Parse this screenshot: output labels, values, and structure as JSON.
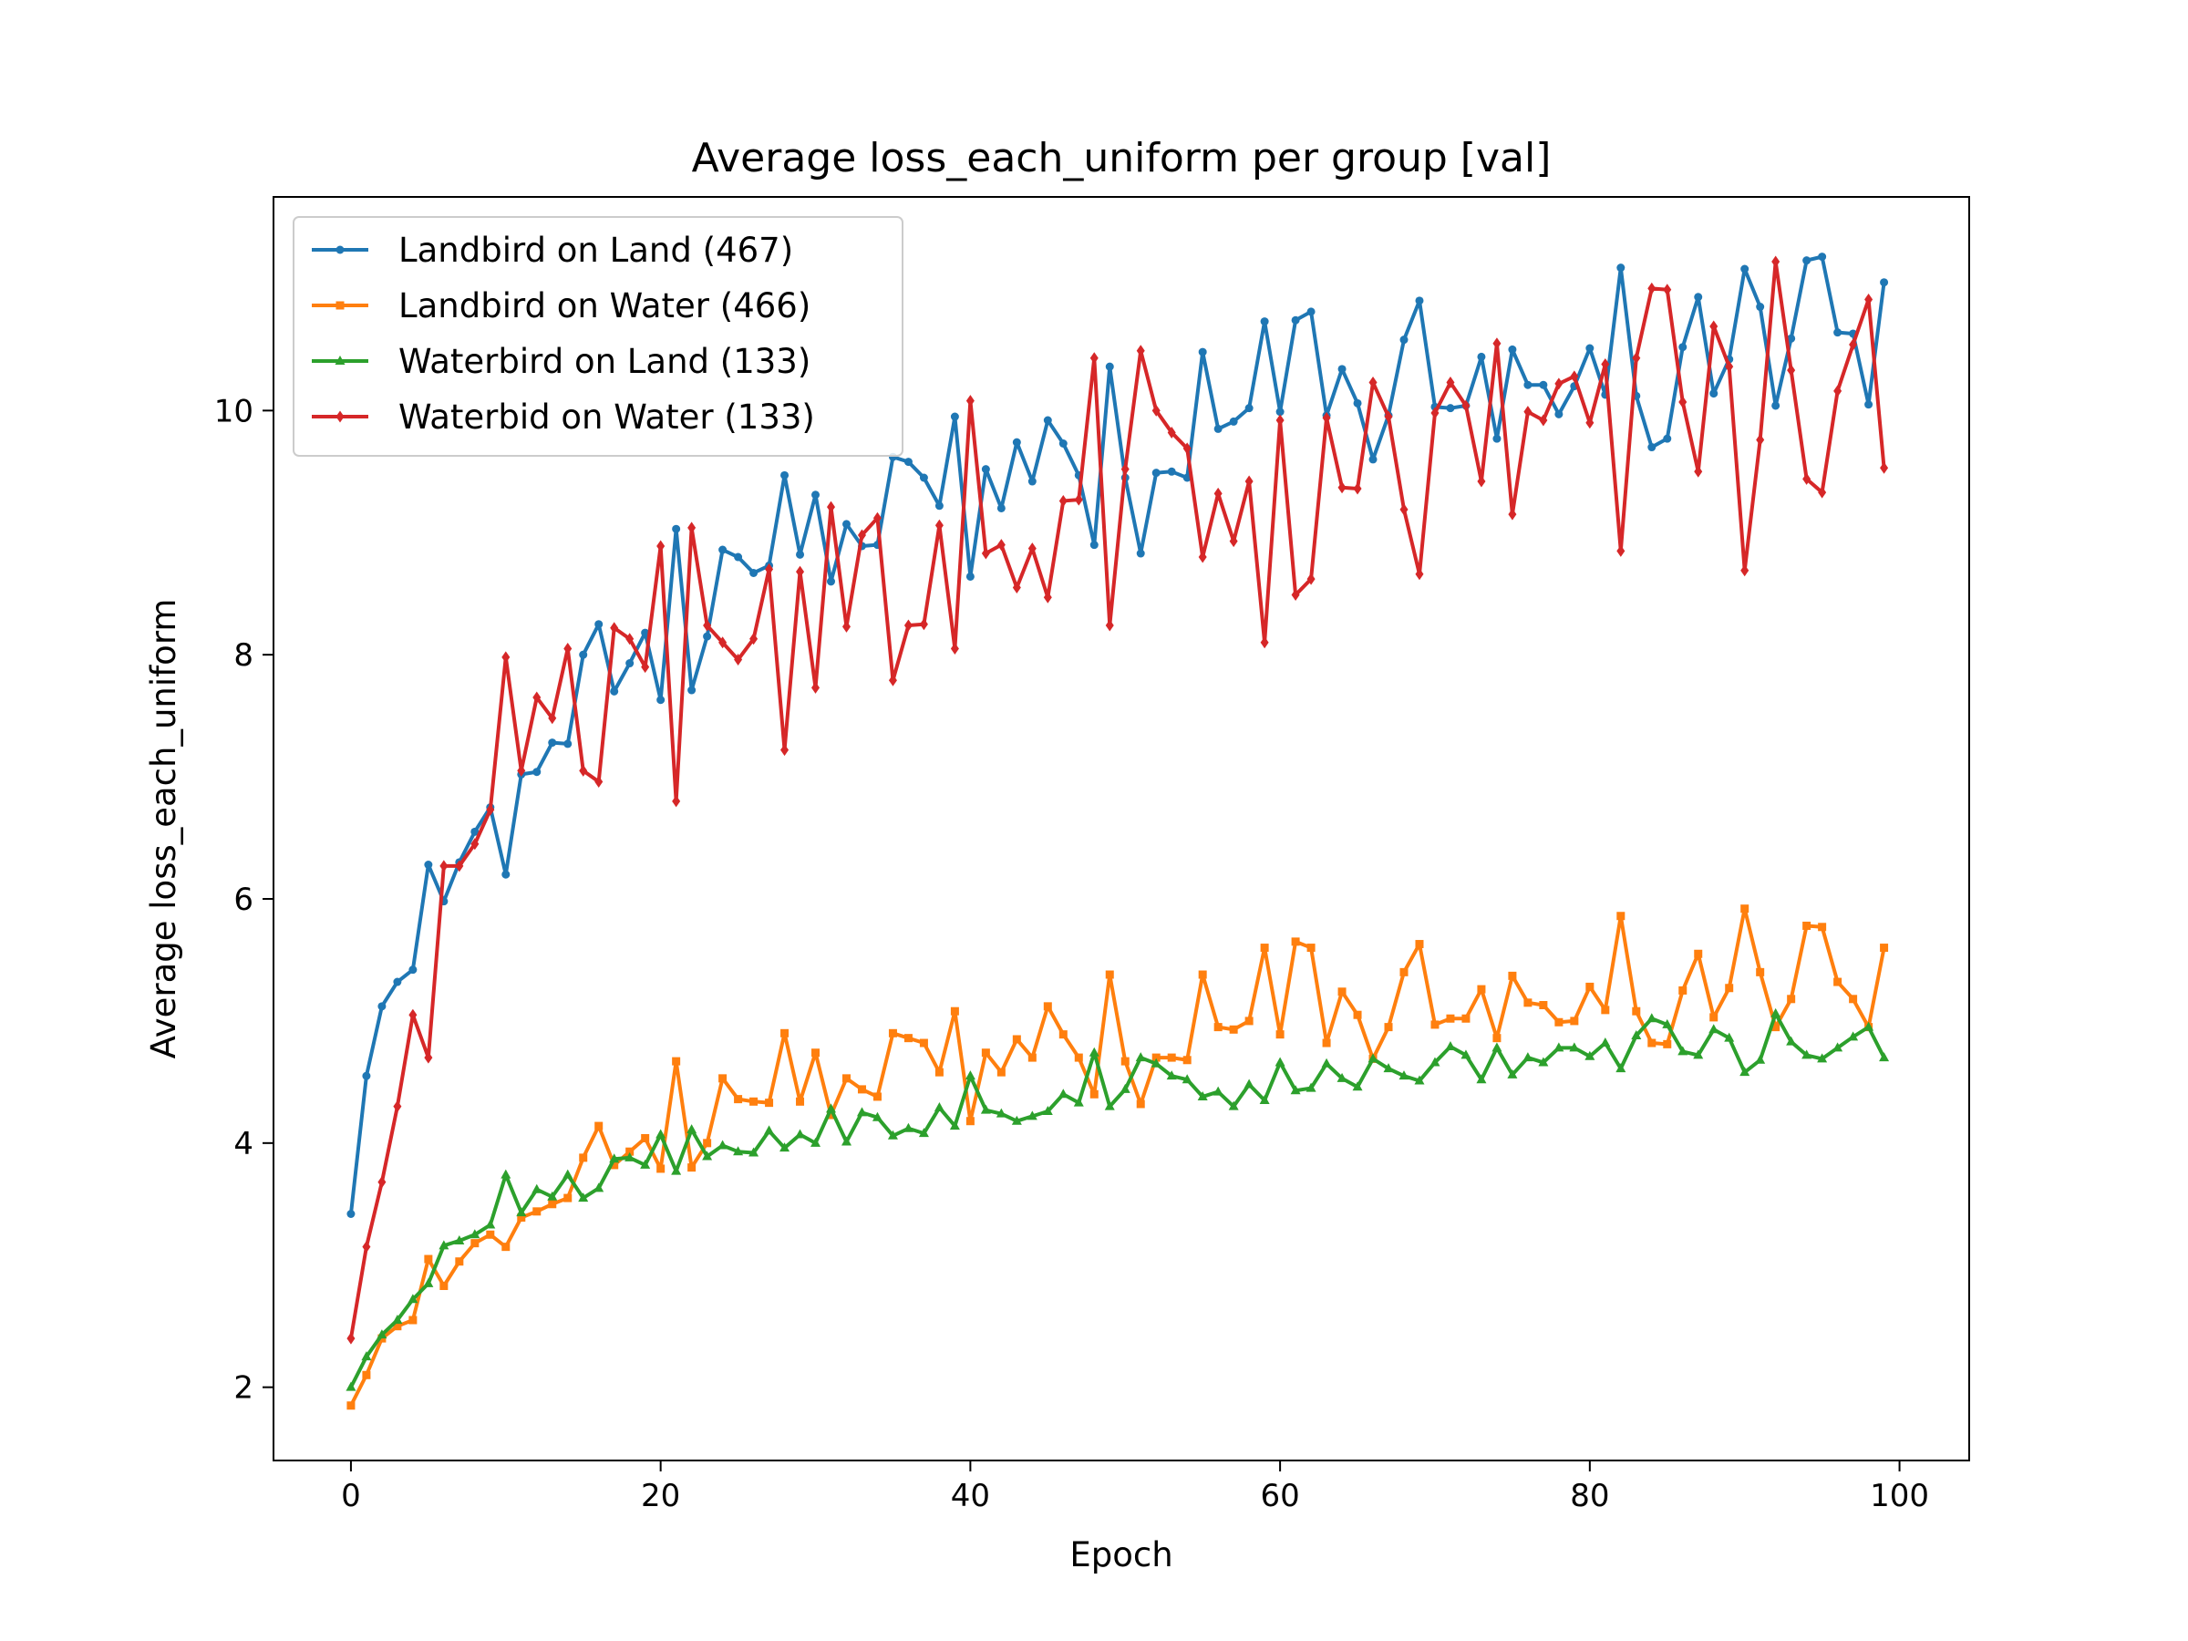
{
  "chart_data": {
    "type": "line",
    "title": "Average loss_each_uniform per group [val]",
    "xlabel": "Epoch",
    "ylabel": "Average loss_each_uniform",
    "xlim": [
      -5,
      104.5
    ],
    "ylim": [
      1.4,
      11.75
    ],
    "xticks": [
      0,
      20,
      40,
      60,
      80,
      100
    ],
    "yticks": [
      2,
      4,
      6,
      8,
      10
    ],
    "legend_position": "upper-left",
    "grid": false,
    "x": [
      0,
      1,
      2,
      3,
      4,
      5,
      6,
      7,
      8,
      9,
      10,
      11,
      12,
      13,
      14,
      15,
      16,
      17,
      18,
      19,
      20,
      21,
      22,
      23,
      24,
      25,
      26,
      27,
      28,
      29,
      30,
      31,
      32,
      33,
      34,
      35,
      36,
      37,
      38,
      39,
      40,
      41,
      42,
      43,
      44,
      45,
      46,
      47,
      48,
      49,
      50,
      51,
      52,
      53,
      54,
      55,
      56,
      57,
      58,
      59,
      60,
      61,
      62,
      63,
      64,
      65,
      66,
      67,
      68,
      69,
      70,
      71,
      72,
      73,
      74,
      75,
      76,
      77,
      78,
      79,
      80,
      81,
      82,
      83,
      84,
      85,
      86,
      87,
      88,
      89,
      90,
      91,
      92,
      93,
      94,
      95,
      96,
      97,
      98,
      99
    ],
    "series": [
      {
        "name": "Landbird on Land (467)",
        "color": "#1f77b4",
        "marker": "circle",
        "values": [
          3.42,
          4.55,
          5.12,
          5.32,
          5.42,
          6.28,
          5.98,
          6.3,
          6.55,
          6.75,
          6.2,
          7.02,
          7.04,
          7.28,
          7.27,
          8.0,
          8.25,
          7.7,
          7.93,
          8.18,
          7.63,
          9.03,
          7.71,
          8.15,
          8.86,
          8.8,
          8.67,
          8.73,
          9.47,
          8.82,
          9.31,
          8.6,
          9.07,
          8.89,
          8.9,
          9.62,
          9.58,
          9.45,
          9.22,
          9.95,
          8.64,
          9.52,
          9.2,
          9.74,
          9.42,
          9.92,
          9.73,
          9.47,
          8.9,
          10.36,
          9.45,
          8.83,
          9.49,
          9.5,
          9.45,
          10.48,
          9.85,
          9.91,
          10.02,
          10.73,
          9.99,
          10.74,
          10.81,
          9.96,
          10.34,
          10.06,
          9.6,
          9.96,
          10.58,
          10.9,
          10.03,
          10.02,
          10.04,
          10.44,
          9.77,
          10.5,
          10.21,
          10.21,
          9.97,
          10.2,
          10.51,
          10.13,
          11.17,
          10.12,
          9.7,
          9.77,
          10.52,
          10.93,
          10.14,
          10.42,
          11.16,
          10.85,
          10.04,
          10.59,
          11.23,
          11.26,
          10.64,
          10.63,
          10.05,
          11.05
        ]
      },
      {
        "name": "Landbird on Water (466)",
        "color": "#ff7f0e",
        "marker": "square",
        "values": [
          1.85,
          2.1,
          2.4,
          2.5,
          2.55,
          3.05,
          2.83,
          3.03,
          3.18,
          3.25,
          3.15,
          3.39,
          3.44,
          3.5,
          3.55,
          3.88,
          4.14,
          3.82,
          3.93,
          4.04,
          3.79,
          4.67,
          3.8,
          4.0,
          4.53,
          4.36,
          4.34,
          4.33,
          4.9,
          4.34,
          4.74,
          4.23,
          4.53,
          4.44,
          4.38,
          4.9,
          4.86,
          4.82,
          4.58,
          5.08,
          4.18,
          4.74,
          4.58,
          4.85,
          4.7,
          5.12,
          4.89,
          4.7,
          4.4,
          5.38,
          4.67,
          4.32,
          4.7,
          4.7,
          4.68,
          5.38,
          4.95,
          4.93,
          5.0,
          5.6,
          4.89,
          5.65,
          5.6,
          4.82,
          5.24,
          5.05,
          4.69,
          4.95,
          5.4,
          5.63,
          4.97,
          5.02,
          5.02,
          5.26,
          4.86,
          5.37,
          5.15,
          5.13,
          4.99,
          5.0,
          5.28,
          5.09,
          5.86,
          5.08,
          4.82,
          4.81,
          5.25,
          5.55,
          5.03,
          5.27,
          5.92,
          5.4,
          4.95,
          5.18,
          5.78,
          5.77,
          5.32,
          5.18,
          4.95,
          5.6
        ]
      },
      {
        "name": "Waterbird on Land (133)",
        "color": "#2ca02c",
        "marker": "triangle",
        "values": [
          2.0,
          2.25,
          2.43,
          2.55,
          2.72,
          2.85,
          3.16,
          3.2,
          3.25,
          3.33,
          3.74,
          3.43,
          3.62,
          3.56,
          3.74,
          3.55,
          3.63,
          3.87,
          3.88,
          3.82,
          4.07,
          3.77,
          4.11,
          3.89,
          3.98,
          3.93,
          3.92,
          4.1,
          3.96,
          4.07,
          4.0,
          4.28,
          4.01,
          4.25,
          4.21,
          4.06,
          4.12,
          4.08,
          4.29,
          4.14,
          4.55,
          4.27,
          4.24,
          4.18,
          4.22,
          4.26,
          4.4,
          4.33,
          4.74,
          4.3,
          4.44,
          4.7,
          4.65,
          4.55,
          4.52,
          4.38,
          4.42,
          4.3,
          4.48,
          4.35,
          4.66,
          4.43,
          4.45,
          4.65,
          4.53,
          4.46,
          4.69,
          4.61,
          4.55,
          4.51,
          4.66,
          4.79,
          4.72,
          4.52,
          4.78,
          4.56,
          4.7,
          4.66,
          4.78,
          4.78,
          4.71,
          4.82,
          4.61,
          4.88,
          5.02,
          4.97,
          4.75,
          4.72,
          4.93,
          4.86,
          4.58,
          4.68,
          5.06,
          4.83,
          4.72,
          4.69,
          4.78,
          4.87,
          4.95,
          4.7
        ]
      },
      {
        "name": "Waterbid on Water (133)",
        "color": "#d62728",
        "marker": "diamond",
        "values": [
          2.4,
          3.15,
          3.68,
          4.3,
          5.05,
          4.7,
          6.27,
          6.27,
          6.45,
          6.73,
          7.98,
          7.05,
          7.65,
          7.48,
          8.05,
          7.05,
          6.96,
          8.22,
          8.13,
          7.9,
          8.89,
          6.8,
          9.04,
          8.24,
          8.1,
          7.96,
          8.13,
          8.7,
          7.22,
          8.68,
          7.73,
          9.21,
          8.23,
          8.98,
          9.12,
          7.79,
          8.24,
          8.25,
          9.06,
          8.05,
          10.08,
          8.83,
          8.9,
          8.55,
          8.87,
          8.47,
          9.26,
          9.27,
          10.43,
          8.24,
          9.52,
          10.49,
          10.0,
          9.82,
          9.69,
          8.8,
          9.32,
          8.93,
          9.42,
          8.1,
          9.92,
          8.49,
          8.62,
          9.94,
          9.37,
          9.36,
          10.23,
          9.95,
          9.19,
          8.66,
          9.98,
          10.23,
          10.04,
          9.42,
          10.55,
          9.15,
          9.99,
          9.92,
          10.22,
          10.28,
          9.9,
          10.38,
          8.85,
          10.43,
          11.0,
          10.99,
          10.07,
          9.5,
          10.69,
          10.36,
          8.69,
          9.76,
          11.22,
          10.33,
          9.44,
          9.33,
          10.16,
          10.54,
          10.91,
          9.53
        ]
      }
    ]
  }
}
